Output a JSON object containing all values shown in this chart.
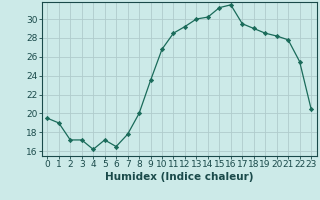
{
  "x": [
    0,
    1,
    2,
    3,
    4,
    5,
    6,
    7,
    8,
    9,
    10,
    11,
    12,
    13,
    14,
    15,
    16,
    17,
    18,
    19,
    20,
    21,
    22,
    23
  ],
  "y": [
    19.5,
    19.0,
    17.2,
    17.2,
    16.2,
    17.2,
    16.5,
    17.8,
    20.0,
    23.5,
    26.8,
    28.5,
    29.2,
    30.0,
    30.2,
    31.2,
    31.5,
    29.5,
    29.0,
    28.5,
    28.2,
    27.8,
    25.5,
    20.5
  ],
  "line_color": "#1a6b5a",
  "marker": "D",
  "marker_size": 2.2,
  "bg_color": "#cceae8",
  "grid_color": "#b0cccc",
  "xlabel": "Humidex (Indice chaleur)",
  "xlim": [
    -0.5,
    23.5
  ],
  "ylim": [
    15.5,
    31.8
  ],
  "yticks": [
    16,
    18,
    20,
    22,
    24,
    26,
    28,
    30
  ],
  "xticks": [
    0,
    1,
    2,
    3,
    4,
    5,
    6,
    7,
    8,
    9,
    10,
    11,
    12,
    13,
    14,
    15,
    16,
    17,
    18,
    19,
    20,
    21,
    22,
    23
  ],
  "xtick_labels": [
    "0",
    "1",
    "2",
    "3",
    "4",
    "5",
    "6",
    "7",
    "8",
    "9",
    "10",
    "11",
    "12",
    "13",
    "14",
    "15",
    "16",
    "17",
    "18",
    "19",
    "20",
    "21",
    "22",
    "23"
  ],
  "tick_color": "#1a4a4a",
  "font_name": "DejaVu Sans",
  "tick_fontsize": 6.5,
  "xlabel_fontsize": 7.5
}
